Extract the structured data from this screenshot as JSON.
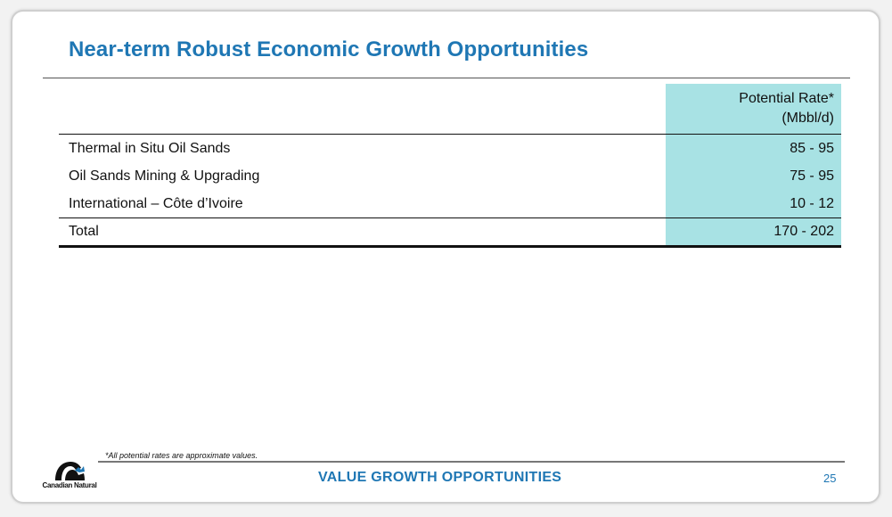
{
  "title": "Near-term Robust Economic Growth Opportunities",
  "table": {
    "header": {
      "label": "",
      "rate_line1": "Potential Rate*",
      "rate_line2": "(Mbbl/d)"
    },
    "rows": [
      {
        "label": "Thermal in Situ Oil Sands",
        "rate": "85 - 95"
      },
      {
        "label": "Oil Sands Mining & Upgrading",
        "rate": "75 - 95"
      },
      {
        "label": "International – Côte d’Ivoire",
        "rate": "10 - 12"
      }
    ],
    "total": {
      "label": "Total",
      "rate": "170 - 202"
    }
  },
  "footnote": "*All potential rates are approximate values.",
  "footer": {
    "section_label": "VALUE GROWTH OPPORTUNITIES",
    "page_number": "25",
    "logo_text": "Canadian Natural",
    "logo_icon": "canadian-natural-logo-icon"
  },
  "colors": {
    "title": "#1f77b4",
    "rate_column": "#a8e2e4",
    "footer_text": "#1f77b4"
  }
}
